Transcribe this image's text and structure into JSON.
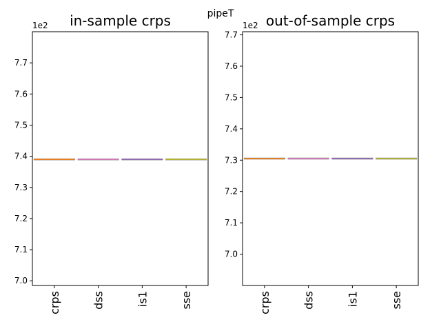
{
  "figure": {
    "suptitle": "pipeT"
  },
  "colors": {
    "crps": "#ff7f0e",
    "dss": "#e377c2",
    "is1": "#9467bd",
    "sse": "#bcbd22",
    "axis": "#000000"
  },
  "chart_data": [
    {
      "type": "box",
      "title": "in-sample crps",
      "xlabel": "",
      "ylabel": "",
      "categories": [
        "crps",
        "dss",
        "is1",
        "sse"
      ],
      "values": [
        739.0,
        739.0,
        739.0,
        739.0
      ],
      "ylim": [
        698.5,
        780.0
      ],
      "yticks": [
        700,
        710,
        720,
        730,
        740,
        750,
        760,
        770
      ],
      "ytick_labels": [
        "7.0",
        "7.1",
        "7.2",
        "7.3",
        "7.4",
        "7.5",
        "7.6",
        "7.7"
      ],
      "offset_label": "1e2",
      "grid": false
    },
    {
      "type": "box",
      "title": "out-of-sample crps",
      "xlabel": "",
      "ylabel": "",
      "categories": [
        "crps",
        "dss",
        "is1",
        "sse"
      ],
      "values": [
        730.5,
        730.5,
        730.5,
        730.5
      ],
      "ylim": [
        690.0,
        771.0
      ],
      "yticks": [
        700,
        710,
        720,
        730,
        740,
        750,
        760,
        770
      ],
      "ytick_labels": [
        "7.0",
        "7.1",
        "7.2",
        "7.3",
        "7.4",
        "7.5",
        "7.6",
        "7.7"
      ],
      "offset_label": "1e2",
      "grid": false
    }
  ]
}
